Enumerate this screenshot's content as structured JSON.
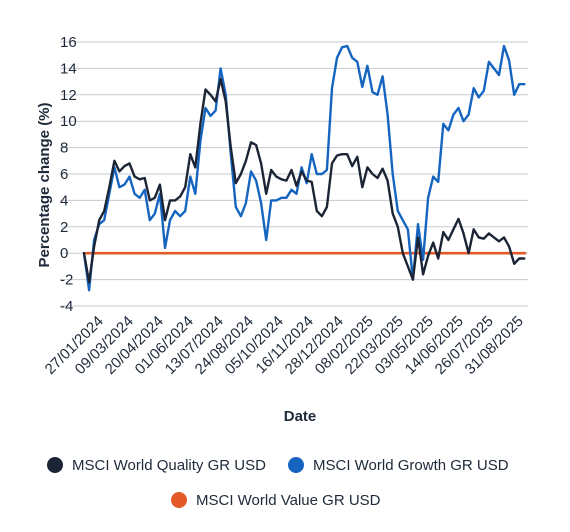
{
  "chart_data": {
    "type": "line",
    "xlabel": "Date",
    "ylabel": "Percentage change (%)",
    "ylim": [
      -4,
      16
    ],
    "yticks": [
      -4,
      -2,
      0,
      2,
      4,
      6,
      8,
      10,
      12,
      14,
      16
    ],
    "xlim": [
      "2024-01-06",
      "2025-09-07"
    ],
    "xtick_labels": [
      "27/01/2024",
      "09/03/2024",
      "20/04/2024",
      "01/06/2024",
      "13/07/2024",
      "24/08/2024",
      "05/10/2024",
      "16/11/2024",
      "28/12/2024",
      "08/02/2025",
      "22/03/2025",
      "03/05/2025",
      "14/06/2025",
      "26/07/2025",
      "31/08/2025"
    ],
    "grid": "horizontal",
    "legend_position": "bottom",
    "series": [
      {
        "name": "MSCI World Quality GR USD",
        "color": "#1c2535",
        "points": [
          [
            "2024-01-06",
            0
          ],
          [
            "2024-01-13",
            -2.2
          ],
          [
            "2024-01-20",
            0.5
          ],
          [
            "2024-01-27",
            2.5
          ],
          [
            "2024-02-03",
            3.2
          ],
          [
            "2024-02-10",
            5
          ],
          [
            "2024-02-17",
            7
          ],
          [
            "2024-02-24",
            6.2
          ],
          [
            "2024-03-02",
            6.6
          ],
          [
            "2024-03-09",
            6.8
          ],
          [
            "2024-03-16",
            5.8
          ],
          [
            "2024-03-23",
            5.6
          ],
          [
            "2024-03-30",
            5.7
          ],
          [
            "2024-04-06",
            4
          ],
          [
            "2024-04-13",
            4.2
          ],
          [
            "2024-04-20",
            5.2
          ],
          [
            "2024-04-27",
            2.5
          ],
          [
            "2024-05-04",
            4
          ],
          [
            "2024-05-11",
            4
          ],
          [
            "2024-05-18",
            4.3
          ],
          [
            "2024-05-25",
            5
          ],
          [
            "2024-06-01",
            7.5
          ],
          [
            "2024-06-08",
            6.5
          ],
          [
            "2024-06-15",
            9.8
          ],
          [
            "2024-06-22",
            12.4
          ],
          [
            "2024-06-29",
            12
          ],
          [
            "2024-07-06",
            11.5
          ],
          [
            "2024-07-13",
            13.2
          ],
          [
            "2024-07-20",
            11.5
          ],
          [
            "2024-07-27",
            8
          ],
          [
            "2024-08-03",
            5.3
          ],
          [
            "2024-08-10",
            6
          ],
          [
            "2024-08-17",
            7
          ],
          [
            "2024-08-24",
            8.4
          ],
          [
            "2024-08-31",
            8.2
          ],
          [
            "2024-09-07",
            6.8
          ],
          [
            "2024-09-14",
            4.5
          ],
          [
            "2024-09-21",
            6.3
          ],
          [
            "2024-09-28",
            5.8
          ],
          [
            "2024-10-05",
            5.6
          ],
          [
            "2024-10-12",
            5.5
          ],
          [
            "2024-10-19",
            6.3
          ],
          [
            "2024-10-26",
            5.1
          ],
          [
            "2024-11-02",
            6.2
          ],
          [
            "2024-11-09",
            5.5
          ],
          [
            "2024-11-16",
            5.4
          ],
          [
            "2024-11-23",
            3.2
          ],
          [
            "2024-11-30",
            2.8
          ],
          [
            "2024-12-07",
            3.5
          ],
          [
            "2024-12-14",
            6.8
          ],
          [
            "2024-12-21",
            7.4
          ],
          [
            "2024-12-28",
            7.5
          ],
          [
            "2025-01-04",
            7.5
          ],
          [
            "2025-01-11",
            6.6
          ],
          [
            "2025-01-18",
            7.3
          ],
          [
            "2025-01-25",
            5
          ],
          [
            "2025-02-01",
            6.5
          ],
          [
            "2025-02-08",
            6
          ],
          [
            "2025-02-15",
            5.7
          ],
          [
            "2025-02-22",
            6.4
          ],
          [
            "2025-03-01",
            5.5
          ],
          [
            "2025-03-08",
            3
          ],
          [
            "2025-03-15",
            2
          ],
          [
            "2025-03-22",
            0
          ],
          [
            "2025-03-29",
            -1
          ],
          [
            "2025-04-05",
            -2
          ],
          [
            "2025-04-12",
            1.2
          ],
          [
            "2025-04-19",
            -1.6
          ],
          [
            "2025-04-26",
            -0.2
          ],
          [
            "2025-05-03",
            0.8
          ],
          [
            "2025-05-10",
            -0.4
          ],
          [
            "2025-05-17",
            1.6
          ],
          [
            "2025-05-24",
            1
          ],
          [
            "2025-05-31",
            1.8
          ],
          [
            "2025-06-07",
            2.6
          ],
          [
            "2025-06-14",
            1.5
          ],
          [
            "2025-06-21",
            0
          ],
          [
            "2025-06-28",
            1.8
          ],
          [
            "2025-07-05",
            1.2
          ],
          [
            "2025-07-12",
            1.1
          ],
          [
            "2025-07-19",
            1.5
          ],
          [
            "2025-07-26",
            1.2
          ],
          [
            "2025-08-02",
            0.9
          ],
          [
            "2025-08-09",
            1.2
          ],
          [
            "2025-08-16",
            0.5
          ],
          [
            "2025-08-23",
            -0.8
          ],
          [
            "2025-08-30",
            -0.4
          ],
          [
            "2025-09-06",
            -0.4
          ]
        ]
      },
      {
        "name": "MSCI World Growth GR USD",
        "color": "#1565c0",
        "points": [
          [
            "2024-01-06",
            0
          ],
          [
            "2024-01-13",
            -2.8
          ],
          [
            "2024-01-20",
            1
          ],
          [
            "2024-01-27",
            2.2
          ],
          [
            "2024-02-03",
            2.5
          ],
          [
            "2024-02-10",
            4.5
          ],
          [
            "2024-02-17",
            6.5
          ],
          [
            "2024-02-24",
            5
          ],
          [
            "2024-03-02",
            5.2
          ],
          [
            "2024-03-09",
            5.8
          ],
          [
            "2024-03-16",
            4.5
          ],
          [
            "2024-03-23",
            4.2
          ],
          [
            "2024-03-30",
            4.8
          ],
          [
            "2024-04-06",
            2.5
          ],
          [
            "2024-04-13",
            3
          ],
          [
            "2024-04-20",
            4.5
          ],
          [
            "2024-04-27",
            0.4
          ],
          [
            "2024-05-04",
            2.5
          ],
          [
            "2024-05-11",
            3.2
          ],
          [
            "2024-05-18",
            2.8
          ],
          [
            "2024-05-25",
            3.2
          ],
          [
            "2024-06-01",
            5.8
          ],
          [
            "2024-06-08",
            4.5
          ],
          [
            "2024-06-15",
            8.5
          ],
          [
            "2024-06-22",
            11
          ],
          [
            "2024-06-29",
            10.4
          ],
          [
            "2024-07-06",
            10.8
          ],
          [
            "2024-07-13",
            14
          ],
          [
            "2024-07-20",
            12
          ],
          [
            "2024-07-27",
            7.5
          ],
          [
            "2024-08-03",
            3.5
          ],
          [
            "2024-08-10",
            2.8
          ],
          [
            "2024-08-17",
            3.8
          ],
          [
            "2024-08-24",
            6.2
          ],
          [
            "2024-08-31",
            5.5
          ],
          [
            "2024-09-07",
            3.8
          ],
          [
            "2024-09-14",
            1
          ],
          [
            "2024-09-21",
            4
          ],
          [
            "2024-09-28",
            4
          ],
          [
            "2024-10-05",
            4.2
          ],
          [
            "2024-10-12",
            4.2
          ],
          [
            "2024-10-19",
            4.8
          ],
          [
            "2024-10-26",
            4.5
          ],
          [
            "2024-11-02",
            6.5
          ],
          [
            "2024-11-09",
            5.3
          ],
          [
            "2024-11-16",
            7.5
          ],
          [
            "2024-11-23",
            6
          ],
          [
            "2024-11-30",
            6
          ],
          [
            "2024-12-07",
            6.3
          ],
          [
            "2024-12-14",
            12.5
          ],
          [
            "2024-12-21",
            14.8
          ],
          [
            "2024-12-28",
            15.6
          ],
          [
            "2025-01-04",
            15.7
          ],
          [
            "2025-01-11",
            14.8
          ],
          [
            "2025-01-18",
            14.5
          ],
          [
            "2025-01-25",
            12.6
          ],
          [
            "2025-02-01",
            14.2
          ],
          [
            "2025-02-08",
            12.2
          ],
          [
            "2025-02-15",
            12
          ],
          [
            "2025-02-22",
            13.4
          ],
          [
            "2025-03-01",
            10.5
          ],
          [
            "2025-03-08",
            6
          ],
          [
            "2025-03-15",
            3.2
          ],
          [
            "2025-03-22",
            2.5
          ],
          [
            "2025-03-29",
            1.8
          ],
          [
            "2025-04-05",
            -2
          ],
          [
            "2025-04-12",
            2.2
          ],
          [
            "2025-04-19",
            -0.5
          ],
          [
            "2025-04-26",
            4.2
          ],
          [
            "2025-05-03",
            5.8
          ],
          [
            "2025-05-10",
            5.4
          ],
          [
            "2025-05-17",
            9.8
          ],
          [
            "2025-05-24",
            9.3
          ],
          [
            "2025-05-31",
            10.5
          ],
          [
            "2025-06-07",
            11
          ],
          [
            "2025-06-14",
            10
          ],
          [
            "2025-06-21",
            10.5
          ],
          [
            "2025-06-28",
            12.5
          ],
          [
            "2025-07-05",
            11.8
          ],
          [
            "2025-07-12",
            12.3
          ],
          [
            "2025-07-19",
            14.5
          ],
          [
            "2025-07-26",
            14
          ],
          [
            "2025-08-02",
            13.5
          ],
          [
            "2025-08-09",
            15.7
          ],
          [
            "2025-08-16",
            14.6
          ],
          [
            "2025-08-23",
            12
          ],
          [
            "2025-08-30",
            12.8
          ],
          [
            "2025-09-06",
            12.8
          ]
        ]
      },
      {
        "name": "MSCI World Value GR USD",
        "color": "#e35a28",
        "points": [
          [
            "2024-01-06",
            0
          ],
          [
            "2025-09-06",
            0
          ]
        ]
      }
    ]
  }
}
